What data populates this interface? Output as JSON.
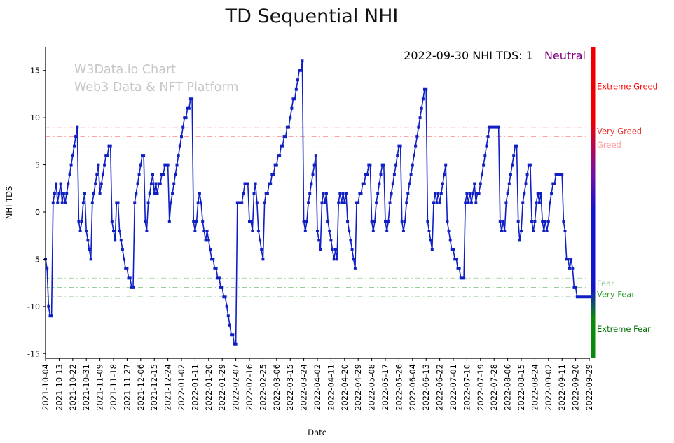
{
  "annotation": {
    "text": "2022-09-30 NHI TDS: 1",
    "status": "Neutral",
    "status_color": "#800080"
  },
  "watermark": {
    "line1": "W3Data.io Chart",
    "line2": "Web3 Data & NFT Platform"
  },
  "chart_data": {
    "type": "line",
    "title": "TD Sequential NHI",
    "xlabel": "Date",
    "ylabel": "NHI TDS",
    "ylim": [
      -15.5,
      17.5
    ],
    "yticks": [
      -15,
      -10,
      -5,
      0,
      5,
      10,
      15
    ],
    "x_tick_interval_days": 9,
    "x_tick_labels": [
      "2021-10-04",
      "2021-10-13",
      "2021-10-22",
      "2021-10-31",
      "2021-11-09",
      "2021-11-18",
      "2021-11-27",
      "2021-12-06",
      "2021-12-15",
      "2021-12-24",
      "2022-01-02",
      "2022-01-11",
      "2022-01-20",
      "2022-01-29",
      "2022-02-07",
      "2022-02-16",
      "2022-02-25",
      "2022-03-06",
      "2022-03-15",
      "2022-03-24",
      "2022-04-02",
      "2022-04-11",
      "2022-04-20",
      "2022-04-29",
      "2022-05-08",
      "2022-05-17",
      "2022-05-26",
      "2022-06-04",
      "2022-06-13",
      "2022-06-22",
      "2022-07-01",
      "2022-07-10",
      "2022-07-19",
      "2022-07-28",
      "2022-08-06",
      "2022-08-15",
      "2022-08-24",
      "2022-09-02",
      "2022-09-11",
      "2022-09-20",
      "2022-09-29"
    ],
    "line_color": "#0f1fc4",
    "marker": "square",
    "values": [
      -5,
      -6,
      -10,
      -11,
      -11,
      1,
      2,
      3,
      1,
      2,
      3,
      1,
      2,
      1,
      2,
      3,
      4,
      5,
      6,
      7,
      8,
      9,
      -1,
      -2,
      -1,
      1,
      2,
      -2,
      -3,
      -4,
      -5,
      1,
      2,
      3,
      4,
      5,
      2,
      3,
      4,
      5,
      6,
      6,
      7,
      7,
      -1,
      -2,
      -3,
      1,
      1,
      -2,
      -3,
      -4,
      -5,
      -6,
      -6,
      -7,
      -7,
      -8,
      -8,
      1,
      2,
      3,
      4,
      5,
      6,
      6,
      -1,
      -2,
      1,
      2,
      3,
      4,
      2,
      3,
      2,
      3,
      3,
      4,
      4,
      5,
      5,
      5,
      -1,
      1,
      2,
      3,
      4,
      5,
      6,
      7,
      8,
      9,
      10,
      10,
      11,
      11,
      12,
      12,
      -1,
      -2,
      -1,
      1,
      2,
      1,
      -1,
      -2,
      -3,
      -2,
      -3,
      -4,
      -5,
      -5,
      -6,
      -6,
      -7,
      -7,
      -8,
      -8,
      -9,
      -9,
      -10,
      -11,
      -12,
      -13,
      -13,
      -14,
      -14,
      1,
      1,
      1,
      1,
      2,
      3,
      3,
      3,
      -1,
      -1,
      -2,
      2,
      3,
      1,
      -2,
      -3,
      -4,
      -5,
      1,
      2,
      2,
      3,
      3,
      4,
      4,
      5,
      5,
      6,
      6,
      7,
      7,
      8,
      8,
      9,
      9,
      10,
      11,
      12,
      12,
      13,
      14,
      15,
      15,
      16,
      -1,
      -2,
      -1,
      1,
      2,
      3,
      4,
      5,
      6,
      -2,
      -3,
      -4,
      1,
      2,
      1,
      2,
      -1,
      -2,
      -3,
      -4,
      -5,
      -4,
      -5,
      1,
      2,
      1,
      2,
      1,
      2,
      -1,
      -2,
      -3,
      -4,
      -5,
      -6,
      1,
      1,
      2,
      2,
      3,
      3,
      4,
      4,
      5,
      5,
      -1,
      -2,
      -1,
      1,
      2,
      3,
      4,
      5,
      5,
      -1,
      -2,
      -1,
      1,
      2,
      3,
      4,
      5,
      6,
      7,
      7,
      -1,
      -2,
      -1,
      1,
      2,
      3,
      4,
      5,
      6,
      7,
      8,
      9,
      10,
      11,
      12,
      13,
      13,
      -1,
      -2,
      -3,
      -4,
      1,
      2,
      1,
      2,
      1,
      2,
      3,
      4,
      5,
      -1,
      -2,
      -3,
      -4,
      -4,
      -5,
      -5,
      -6,
      -6,
      -7,
      -7,
      -7,
      1,
      2,
      1,
      2,
      1,
      2,
      3,
      1,
      2,
      2,
      3,
      4,
      5,
      6,
      7,
      8,
      9,
      9,
      9,
      9,
      9,
      9,
      9,
      -1,
      -2,
      -1,
      -2,
      1,
      2,
      3,
      4,
      5,
      6,
      7,
      7,
      -1,
      -3,
      -2,
      1,
      2,
      3,
      4,
      5,
      5,
      -1,
      -2,
      -1,
      1,
      2,
      1,
      2,
      -1,
      -2,
      -1,
      -2,
      -1,
      1,
      2,
      3,
      3,
      4,
      4,
      4,
      4,
      4,
      -1,
      -2,
      -5,
      -5,
      -6,
      -5,
      -6,
      -8,
      -8,
      -9,
      -9,
      -9,
      -9,
      -9,
      -9,
      -9,
      -9,
      -9
    ],
    "threshold_lines": [
      {
        "value": 9,
        "color": "#ee1111",
        "label": "Very Greed",
        "label_color": "#e53935",
        "label_value": 8.55
      },
      {
        "value": 8,
        "color": "#ff6b6b",
        "label": "",
        "label_color": "",
        "label_value": 0
      },
      {
        "value": 7,
        "color": "#ffb3b3",
        "label": "Greed",
        "label_color": "#ff9e9e",
        "label_value": 7.1
      },
      {
        "value": -7,
        "color": "#b5ddb5",
        "label": "Fear",
        "label_color": "#9ccc9c",
        "label_value": -7.55
      },
      {
        "value": -8,
        "color": "#56b056",
        "label": "Very Fear",
        "label_color": "#2e9e2e",
        "label_value": -8.7
      },
      {
        "value": -9,
        "color": "#1d7a1d",
        "label": "",
        "label_color": "",
        "label_value": 0
      }
    ],
    "zone_labels": [
      {
        "text": "Extreme Greed",
        "color": "#ff0000",
        "value": 13.3
      },
      {
        "text": "Extreme Fear",
        "color": "#007000",
        "value": -12.4
      }
    ],
    "colorbar": {
      "x": 843.5,
      "width": 6,
      "stops": [
        {
          "offset": 0,
          "color": "#ee0000"
        },
        {
          "offset": 0.24,
          "color": "#ee0000"
        },
        {
          "offset": 0.4,
          "color": "#7a0f9e"
        },
        {
          "offset": 0.52,
          "color": "#1414c8"
        },
        {
          "offset": 0.78,
          "color": "#1414c8"
        },
        {
          "offset": 0.87,
          "color": "#0a8a0a"
        },
        {
          "offset": 1,
          "color": "#0a8a0a"
        }
      ]
    },
    "legend": "none",
    "grid": false
  }
}
